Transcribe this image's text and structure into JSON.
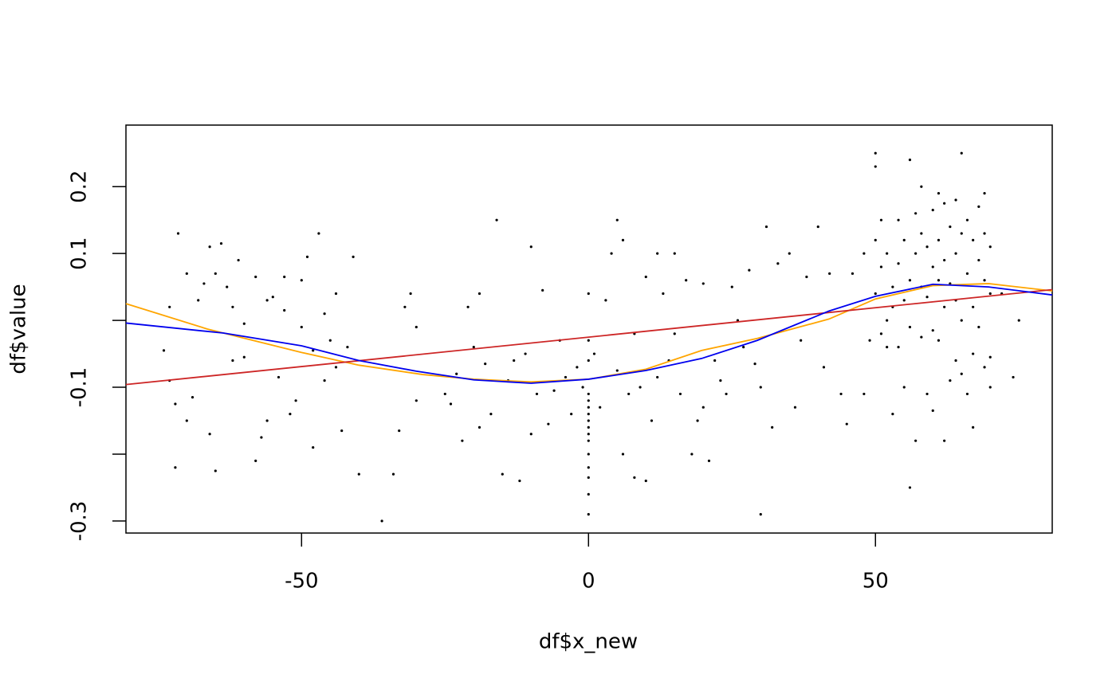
{
  "chart_data": {
    "type": "scatter",
    "x_label": "df$x_new",
    "y_label": "df$value",
    "xlim": [
      -80.6,
      80.8
    ],
    "ylim": [
      -0.318,
      0.292
    ],
    "xticks": [
      -50,
      0,
      50
    ],
    "yticks": [
      -0.3,
      -0.1,
      0.1,
      0.2
    ],
    "yticks_unlabeled": [
      -0.2,
      0
    ],
    "points": {
      "color": "#000000",
      "x": [
        -72,
        -71.5,
        -73,
        -74,
        -73,
        -72,
        -70,
        -69,
        -70,
        -68,
        -67,
        -66,
        -65,
        -64,
        -63,
        -62,
        -61,
        -66,
        -65,
        -62,
        -60,
        -58,
        -57,
        -56,
        -55,
        -54,
        -53,
        -52,
        -51,
        -50,
        -49,
        -48,
        -47,
        -46,
        -45,
        -44,
        -43,
        -42,
        -41,
        -40,
        -58,
        -60,
        -56,
        -53,
        -50,
        -48,
        -46,
        -44,
        -36,
        -34,
        -33,
        -32,
        -31,
        -30,
        -30,
        -25,
        -24,
        -23,
        -22,
        -21,
        -20,
        -19,
        -19,
        -18,
        -17,
        -16,
        -15,
        -14,
        -13,
        -12,
        -11,
        -10,
        -10,
        -9,
        -8,
        -7,
        -6,
        -5,
        -4,
        -3,
        -2,
        -1,
        0,
        0,
        0,
        0,
        0,
        0,
        0,
        0,
        0,
        0,
        0,
        0,
        0,
        0,
        0,
        0,
        1,
        2,
        3,
        4,
        5,
        5,
        6,
        6,
        7,
        8,
        8,
        9,
        10,
        10,
        11,
        12,
        12,
        13,
        14,
        15,
        15,
        16,
        17,
        18,
        19,
        20,
        20,
        21,
        22,
        23,
        24,
        25,
        26,
        27,
        28,
        29,
        30,
        30,
        31,
        32,
        33,
        35,
        36,
        37,
        38,
        40,
        41,
        42,
        44,
        45,
        46,
        48,
        48,
        49,
        50,
        50,
        50,
        50,
        51,
        51,
        51,
        52,
        52,
        52,
        53,
        53,
        53,
        54,
        54,
        54,
        55,
        55,
        55,
        56,
        56,
        56,
        56,
        57,
        57,
        57,
        58,
        58,
        58,
        58,
        59,
        59,
        59,
        60,
        60,
        60,
        60,
        61,
        61,
        61,
        61,
        62,
        62,
        62,
        62,
        63,
        63,
        63,
        64,
        64,
        64,
        64,
        65,
        65,
        65,
        65,
        66,
        66,
        66,
        67,
        67,
        67,
        67,
        68,
        68,
        68,
        69,
        69,
        69,
        69,
        70,
        70,
        70,
        70,
        72,
        74,
        75
      ],
      "values": [
        -0.22,
        0.13,
        0.02,
        -0.045,
        -0.09,
        -0.125,
        -0.15,
        -0.115,
        0.07,
        0.03,
        0.055,
        0.11,
        0.07,
        0.115,
        0.05,
        -0.06,
        0.09,
        -0.17,
        -0.225,
        0.02,
        -0.055,
        0.065,
        -0.175,
        -0.15,
        0.035,
        -0.085,
        0.065,
        -0.14,
        -0.12,
        0.06,
        0.095,
        -0.19,
        0.13,
        0.01,
        -0.03,
        0.04,
        -0.165,
        -0.04,
        0.095,
        -0.23,
        -0.21,
        -0.005,
        0.03,
        0.015,
        -0.01,
        -0.045,
        -0.09,
        -0.07,
        -0.3,
        -0.23,
        -0.165,
        0.02,
        0.04,
        -0.01,
        -0.12,
        -0.11,
        -0.125,
        -0.08,
        -0.18,
        0.02,
        -0.04,
        0.04,
        -0.16,
        -0.065,
        -0.14,
        0.15,
        -0.23,
        -0.09,
        -0.06,
        -0.24,
        -0.05,
        0.11,
        -0.17,
        -0.11,
        0.045,
        -0.155,
        -0.105,
        -0.03,
        -0.085,
        -0.14,
        -0.07,
        -0.1,
        0.04,
        -0.03,
        -0.06,
        -0.11,
        -0.12,
        -0.13,
        -0.14,
        -0.15,
        -0.16,
        -0.17,
        -0.18,
        -0.2,
        -0.22,
        -0.235,
        -0.26,
        -0.29,
        -0.05,
        -0.13,
        0.03,
        0.1,
        0.15,
        -0.075,
        -0.2,
        0.12,
        -0.11,
        -0.02,
        -0.235,
        -0.1,
        0.065,
        -0.24,
        -0.15,
        0.1,
        -0.085,
        0.04,
        -0.06,
        -0.02,
        0.1,
        -0.11,
        0.06,
        -0.2,
        -0.15,
        -0.13,
        0.055,
        -0.21,
        -0.06,
        -0.09,
        -0.11,
        0.05,
        0.0,
        -0.04,
        0.075,
        -0.065,
        -0.29,
        -0.1,
        0.14,
        -0.16,
        0.085,
        0.1,
        -0.13,
        -0.03,
        0.065,
        0.14,
        -0.07,
        0.07,
        -0.11,
        -0.155,
        0.07,
        -0.11,
        0.1,
        -0.03,
        0.25,
        0.23,
        0.12,
        0.04,
        0.15,
        -0.02,
        0.08,
        0.0,
        -0.04,
        0.1,
        0.05,
        -0.14,
        0.02,
        0.15,
        -0.04,
        0.085,
        0.12,
        0.03,
        -0.1,
        0.24,
        0.06,
        -0.01,
        -0.25,
        0.16,
        0.1,
        -0.18,
        0.2,
        0.05,
        0.13,
        -0.025,
        0.11,
        -0.11,
        0.035,
        0.165,
        0.08,
        -0.015,
        -0.135,
        0.19,
        0.06,
        0.12,
        -0.03,
        0.175,
        0.02,
        0.09,
        -0.18,
        0.14,
        -0.09,
        0.055,
        0.18,
        0.1,
        -0.06,
        0.03,
        0.25,
        0.13,
        -0.08,
        0.0,
        0.15,
        0.07,
        -0.11,
        0.12,
        -0.05,
        0.02,
        -0.16,
        0.17,
        0.09,
        -0.01,
        0.13,
        0.06,
        -0.07,
        0.19,
        0.11,
        0.04,
        -0.055,
        -0.1,
        0.04,
        -0.085,
        0.0
      ]
    },
    "lines": [
      {
        "color": "#ffa500",
        "x": [
          -80.6,
          -66.4,
          -50,
          -40,
          -28.9,
          -20,
          -10,
          0,
          10,
          19.7,
          29.4,
          41.9,
          50,
          60,
          69.7,
          80.8
        ],
        "values": [
          0.025,
          -0.013,
          -0.048,
          -0.067,
          -0.081,
          -0.088,
          -0.092,
          -0.088,
          -0.073,
          -0.045,
          -0.027,
          0.002,
          0.032,
          0.052,
          0.055,
          0.044
        ]
      },
      {
        "color": "#cd2626",
        "x": [
          -80.6,
          80.8
        ],
        "values": [
          -0.096,
          0.046
        ]
      },
      {
        "color": "#0000ee",
        "x": [
          -80.6,
          -63.6,
          -50,
          -40,
          -30,
          -20,
          -10,
          0,
          10,
          19.7,
          29.4,
          41.9,
          50,
          60,
          69.7,
          80.8
        ],
        "values": [
          -0.004,
          -0.019,
          -0.038,
          -0.06,
          -0.076,
          -0.089,
          -0.094,
          -0.088,
          -0.075,
          -0.057,
          -0.03,
          0.014,
          0.036,
          0.054,
          0.05,
          0.038
        ]
      }
    ]
  }
}
